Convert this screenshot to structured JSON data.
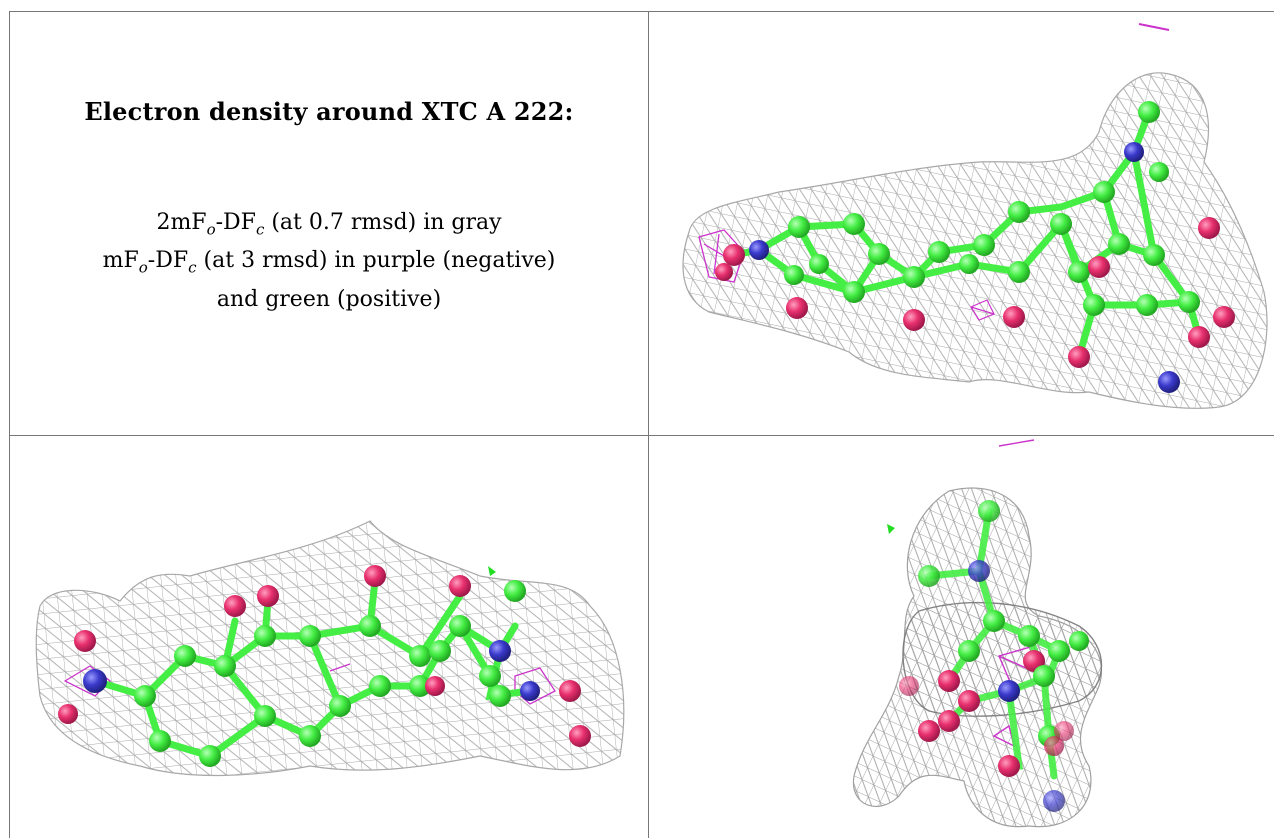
{
  "caption": {
    "title": "Electron density around XTC A 222:",
    "line1_pre": "2mF",
    "line1_sub_o": "o",
    "line1_mid": "-DF",
    "line1_sub_c": "c",
    "line1_post": " (at 0.7 rmsd) in gray",
    "line2_pre": "mF",
    "line2_sub_o": "o",
    "line2_mid": "-DF",
    "line2_sub_c": "c",
    "line2_post": " (at 3 rmsd) in purple (negative)",
    "line3": "and green (positive)"
  },
  "colors": {
    "mesh_2fofc": "#a8a8a8",
    "mesh_negative": "#cc33cc",
    "mesh_positive": "#22dd22",
    "carbon": "#44ee44",
    "oxygen": "#e8306e",
    "nitrogen": "#3a3acc",
    "grid_line": "#777777"
  },
  "panels": [
    {
      "name": "view-top-right"
    },
    {
      "name": "view-bottom-left"
    },
    {
      "name": "view-bottom-right"
    }
  ]
}
